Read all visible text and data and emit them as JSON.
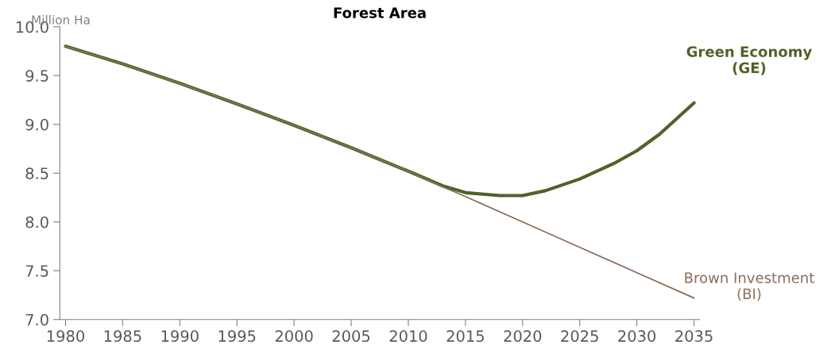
{
  "chart_data": {
    "type": "line",
    "title": "Forest Area",
    "ylabel": "Million Ha",
    "xlim": [
      1979.5,
      2035.5
    ],
    "xticks": [
      1980,
      1985,
      1990,
      1995,
      2000,
      2005,
      2010,
      2015,
      2020,
      2025,
      2030,
      2035
    ],
    "ylim": [
      7.0,
      10.0
    ],
    "yticks": [
      {
        "value": 7.0,
        "label": "7.0"
      },
      {
        "value": 7.5,
        "label": "7.5"
      },
      {
        "value": 8.0,
        "label": "8.0"
      },
      {
        "value": 8.5,
        "label": "8.5"
      },
      {
        "value": 9.0,
        "label": "9.0"
      },
      {
        "value": 9.5,
        "label": "9.5"
      },
      {
        "value": 10.0,
        "label": "10.0"
      }
    ],
    "grid": false,
    "legend": false,
    "marker": "none",
    "line_style": "solid",
    "series": [
      {
        "name": "Brown Investment\n(BI)",
        "color": "#8c6d5a",
        "x": [
          1980,
          1985,
          1990,
          1995,
          2000,
          2005,
          2010,
          2013,
          2015,
          2020,
          2025,
          2030,
          2035
        ],
        "values": [
          9.8,
          9.62,
          9.42,
          9.21,
          8.99,
          8.76,
          8.52,
          8.36,
          8.26,
          8.0,
          7.74,
          7.48,
          7.22
        ]
      },
      {
        "name": "Green Economy\n(GE)",
        "color": "#4f6228",
        "x": [
          1980,
          1985,
          1990,
          1995,
          2000,
          2005,
          2010,
          2013,
          2015,
          2018,
          2020,
          2022,
          2025,
          2028,
          2030,
          2032,
          2035
        ],
        "values": [
          9.8,
          9.62,
          9.42,
          9.21,
          8.99,
          8.76,
          8.52,
          8.37,
          8.3,
          8.27,
          8.27,
          8.32,
          8.44,
          8.6,
          8.73,
          8.9,
          9.22
        ]
      }
    ]
  }
}
